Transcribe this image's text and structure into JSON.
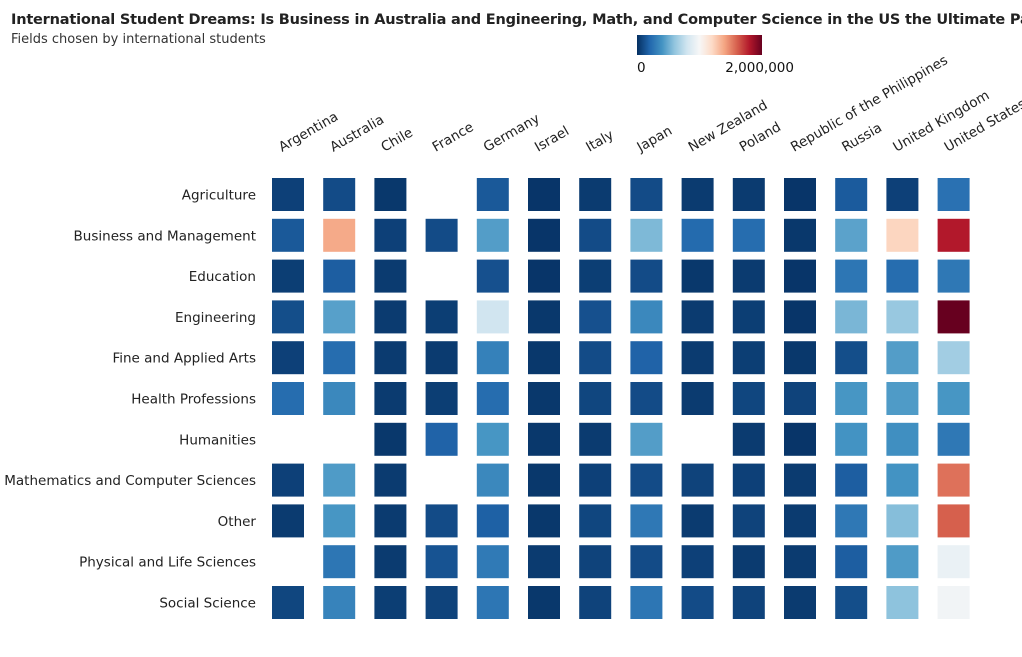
{
  "chart_data": {
    "type": "heatmap",
    "title": "International Student Dreams: Is Business in Australia and Engineering, Math, and Computer Science in the US the Ultimate Path?",
    "subtitle": "Fields chosen by international students",
    "x_categories": [
      "Argentina",
      "Australia",
      "Chile",
      "France",
      "Germany",
      "Israel",
      "Italy",
      "Japan",
      "New Zealand",
      "Poland",
      "Republic of the Philippines",
      "Russia",
      "United Kingdom",
      "United States"
    ],
    "y_categories": [
      "Agriculture",
      "Business and Management",
      "Education",
      "Engineering",
      "Fine and Applied Arts",
      "Health Professions",
      "Humanities",
      "Mathematics and Computer Sciences",
      "Other",
      "Physical and Life Sciences",
      "Social Science"
    ],
    "legend": {
      "min_label": "0",
      "max_label": "2,000,000",
      "min": 0,
      "max": 2000000,
      "position": "top-right",
      "colorscale": [
        "#053061",
        "#2166ac",
        "#4393c3",
        "#92c5de",
        "#d1e5f0",
        "#f7f7f7",
        "#fddbc7",
        "#f4a582",
        "#d6604d",
        "#b2182b",
        "#67001f"
      ]
    },
    "values": [
      [
        60000,
        100000,
        30000,
        null,
        150000,
        20000,
        40000,
        100000,
        40000,
        40000,
        20000,
        160000,
        60000,
        250000
      ],
      [
        150000,
        1380000,
        60000,
        100000,
        440000,
        20000,
        100000,
        550000,
        220000,
        230000,
        30000,
        460000,
        1220000,
        1800000
      ],
      [
        50000,
        170000,
        40000,
        null,
        120000,
        20000,
        50000,
        100000,
        30000,
        40000,
        20000,
        270000,
        230000,
        280000
      ],
      [
        110000,
        450000,
        40000,
        50000,
        800000,
        30000,
        120000,
        350000,
        40000,
        50000,
        20000,
        540000,
        620000,
        2000000
      ],
      [
        60000,
        230000,
        40000,
        40000,
        320000,
        30000,
        100000,
        190000,
        40000,
        50000,
        30000,
        110000,
        440000,
        650000
      ],
      [
        230000,
        350000,
        40000,
        50000,
        230000,
        30000,
        80000,
        100000,
        40000,
        80000,
        70000,
        410000,
        430000,
        410000
      ],
      [
        null,
        null,
        30000,
        190000,
        410000,
        30000,
        40000,
        440000,
        null,
        40000,
        20000,
        400000,
        380000,
        280000
      ],
      [
        60000,
        430000,
        40000,
        null,
        350000,
        30000,
        60000,
        100000,
        70000,
        60000,
        40000,
        170000,
        400000,
        1550000
      ],
      [
        40000,
        410000,
        40000,
        100000,
        180000,
        30000,
        80000,
        280000,
        40000,
        70000,
        40000,
        280000,
        570000,
        1600000
      ],
      [
        null,
        270000,
        40000,
        130000,
        290000,
        40000,
        70000,
        100000,
        60000,
        40000,
        40000,
        170000,
        430000,
        930000
      ],
      [
        80000,
        330000,
        50000,
        70000,
        270000,
        30000,
        70000,
        270000,
        100000,
        70000,
        40000,
        110000,
        590000,
        970000
      ]
    ]
  }
}
